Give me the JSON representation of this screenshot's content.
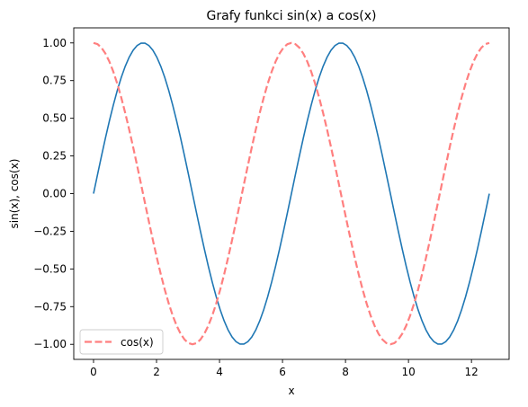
{
  "chart_data": {
    "type": "line",
    "title": "Grafy funkci sin(x) a cos(x)",
    "xlabel": "x",
    "ylabel": "sin(x), cos(x)",
    "xlim": [
      -0.628,
      13.195
    ],
    "ylim": [
      -1.1,
      1.1
    ],
    "x_ticks": [
      0,
      2,
      4,
      6,
      8,
      10,
      12
    ],
    "x_tick_labels": [
      "0",
      "2",
      "4",
      "6",
      "8",
      "10",
      "12"
    ],
    "y_ticks": [
      -1.0,
      -0.75,
      -0.5,
      -0.25,
      0.0,
      0.25,
      0.5,
      0.75,
      1.0
    ],
    "y_tick_labels": [
      "−1.00",
      "−0.75",
      "−0.50",
      "−0.25",
      "0.00",
      "0.25",
      "0.50",
      "0.75",
      "1.00"
    ],
    "grid": false,
    "legend_position": "lower-left",
    "legend_entries": [
      "cos(x)"
    ],
    "x_range": [
      0,
      12.566
    ],
    "sample_count": 101,
    "series": [
      {
        "function": "sin",
        "color": "#1f77b4",
        "line_style": "solid",
        "in_legend": false
      },
      {
        "name": "cos(x)",
        "function": "cos",
        "color": "#ff7f7f",
        "line_style": "dashed",
        "in_legend": true
      }
    ]
  }
}
